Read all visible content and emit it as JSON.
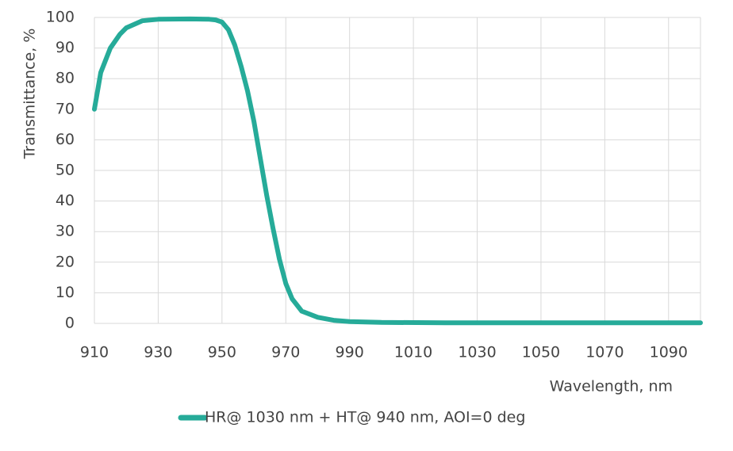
{
  "chart_data": {
    "type": "line",
    "x_label": "Wavelength, nm",
    "y_label": "Transmittance, %",
    "x": [
      910,
      912,
      915,
      918,
      920,
      925,
      930,
      940,
      946,
      948,
      950,
      952,
      954,
      956,
      958,
      960,
      962,
      964,
      966,
      968,
      970,
      972,
      975,
      980,
      985,
      990,
      1000,
      1020,
      1050,
      1100
    ],
    "series": [
      {
        "name": "HR@ 1030 nm + HT@ 940 nm, AOI=0 deg",
        "color": "#26ab99",
        "values": [
          70,
          82,
          90,
          94.5,
          96.6,
          98.9,
          99.4,
          99.5,
          99.4,
          99.2,
          98.5,
          96,
          91,
          84,
          76,
          66,
          54,
          42,
          31,
          21,
          13,
          8,
          4,
          2,
          1,
          0.6,
          0.3,
          0.2,
          0.2,
          0.2
        ]
      }
    ],
    "xlim": [
      910,
      1100
    ],
    "xticks": [
      910,
      930,
      950,
      970,
      990,
      1010,
      1030,
      1050,
      1070,
      1090
    ],
    "ylim": [
      0,
      100
    ],
    "yticks": [
      0,
      10,
      20,
      30,
      40,
      50,
      60,
      70,
      80,
      90,
      100
    ],
    "grid": true,
    "legend": "bottom"
  }
}
